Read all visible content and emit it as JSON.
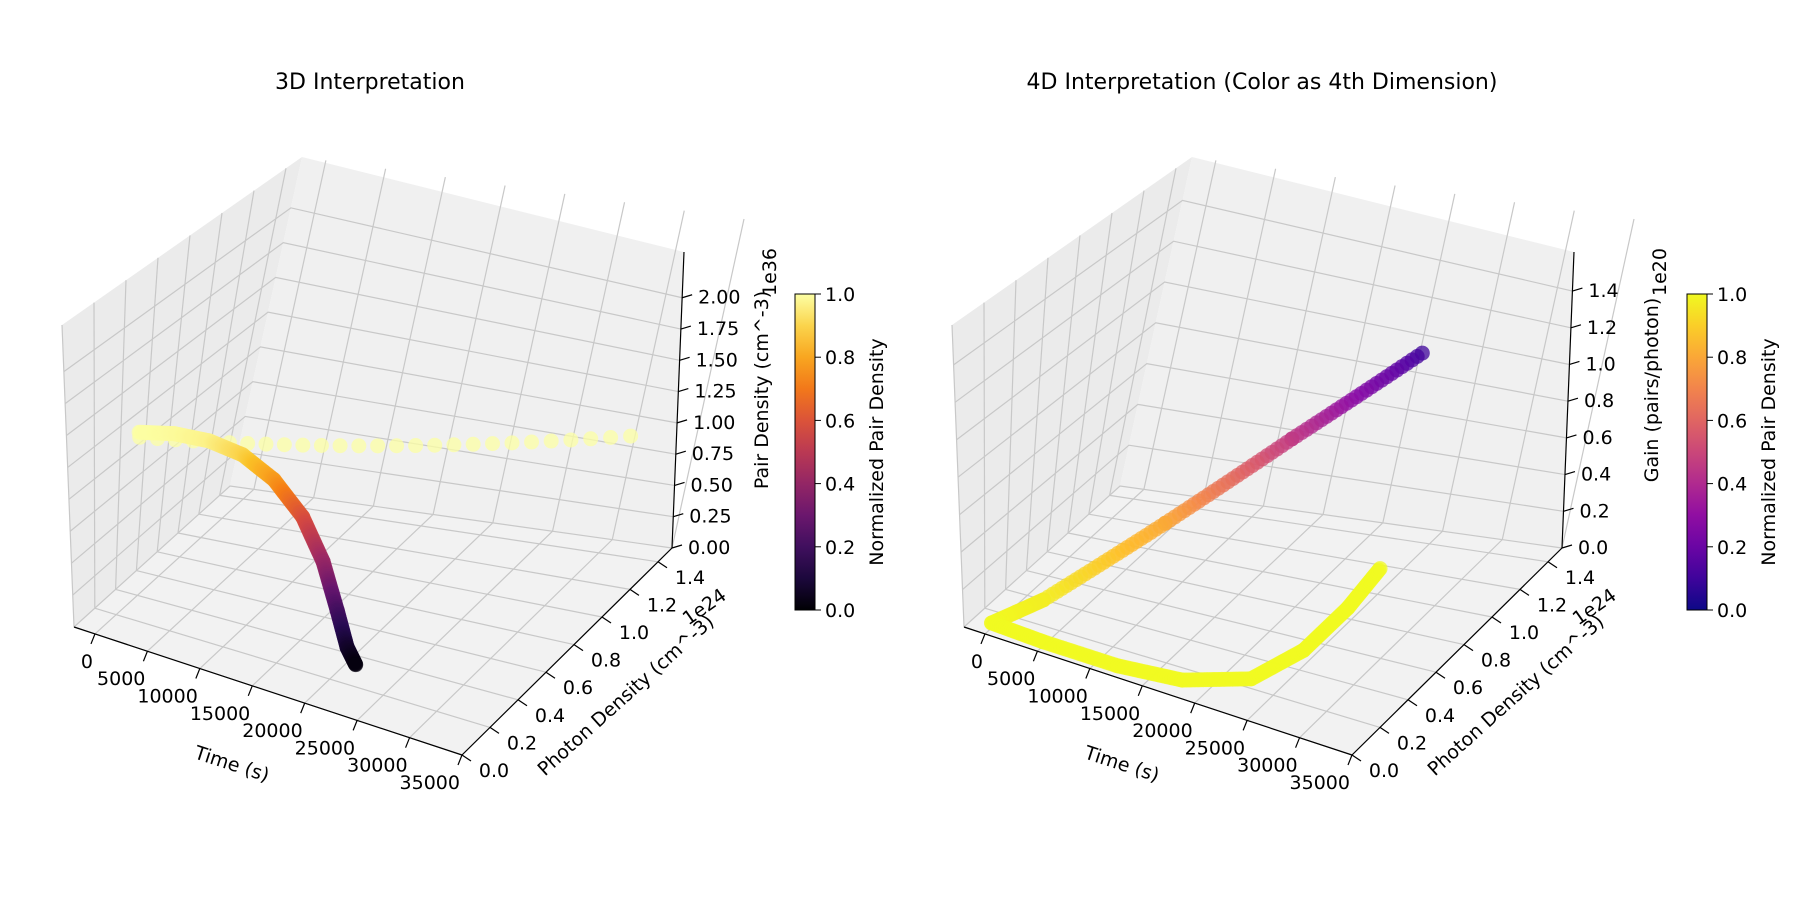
{
  "chart_data": [
    {
      "type": "scatter",
      "projection": "3d",
      "title": "3D Interpretation",
      "xlabel": "Time (s)",
      "ylabel": "Photon Density (cm^-3)",
      "zlabel": "Pair Density (cm^-3)",
      "xlim": [
        -2000,
        35000
      ],
      "ylim": [
        0,
        1.5e+24
      ],
      "zlim": [
        0,
        2.2e+36
      ],
      "xticks": [
        0,
        5000,
        10000,
        15000,
        20000,
        25000,
        30000,
        35000
      ],
      "xtick_labels": [
        "0",
        "5000",
        "10000",
        "15000",
        "20000",
        "25000",
        "30000",
        "35000"
      ],
      "yticks": [
        0,
        2e+23,
        4e+23,
        6e+23,
        8e+23,
        1e+24,
        1.2e+24,
        1.4e+24
      ],
      "ytick_labels": [
        "0.0",
        "0.2",
        "0.4",
        "0.6",
        "0.8",
        "1.0",
        "1.2",
        "1.4"
      ],
      "y_offset_label": "1e24",
      "zticks": [
        0,
        2.5e+35,
        5e+35,
        7.5e+35,
        1e+36,
        1.25e+36,
        1.5e+36,
        1.75e+36,
        2e+36
      ],
      "ztick_labels": [
        "0.00",
        "0.25",
        "0.50",
        "0.75",
        "1.00",
        "1.25",
        "1.50",
        "1.75",
        "2.00"
      ],
      "z_offset_label": "1e36",
      "colormap": "inferno",
      "colorbar": {
        "label": "Normalized Pair Density",
        "ticks": [
          0,
          0.2,
          0.4,
          0.6,
          0.8,
          1.0
        ],
        "tick_labels": [
          "0.0",
          "0.2",
          "0.4",
          "0.6",
          "0.8",
          "1.0"
        ]
      },
      "trajectory": [
        {
          "t": 0,
          "photon": 0.0,
          "pair": 1.45e+36,
          "c": 1.0
        },
        {
          "t": 3000,
          "photon": 2e+22,
          "pair": 1.5e+36,
          "c": 0.99
        },
        {
          "t": 6000,
          "photon": 5e+22,
          "pair": 1.5e+36,
          "c": 0.97
        },
        {
          "t": 9000,
          "photon": 8e+22,
          "pair": 1.45e+36,
          "c": 0.9
        },
        {
          "t": 12000,
          "photon": 1.1e+23,
          "pair": 1.32e+36,
          "c": 0.78
        },
        {
          "t": 15000,
          "photon": 1.4e+23,
          "pair": 1.1e+36,
          "c": 0.6
        },
        {
          "t": 17500,
          "photon": 1.6e+23,
          "pair": 8.2e+35,
          "c": 0.42
        },
        {
          "t": 19500,
          "photon": 1.8e+23,
          "pair": 5e+35,
          "c": 0.22
        },
        {
          "t": 21000,
          "photon": 1.9e+23,
          "pair": 2.6e+35,
          "c": 0.08
        },
        {
          "t": 22000,
          "photon": 2e+23,
          "pair": 1.5e+35,
          "c": 0.02
        }
      ],
      "trajectory_alt": [
        {
          "t": 0,
          "photon": 2e+22,
          "pair": 1.4e+36,
          "c": 1.0
        },
        {
          "t": 35000,
          "photon": 9e+23,
          "pair": 1.4e+36,
          "c": 1.0
        }
      ]
    },
    {
      "type": "scatter",
      "projection": "3d",
      "title": "4D Interpretation (Color as 4th Dimension)",
      "xlabel": "Time (s)",
      "ylabel": "Photon Density (cm^-3)",
      "zlabel": "Gain (pairs/photon)",
      "xlim": [
        -2000,
        35000
      ],
      "ylim": [
        0,
        1.5e+24
      ],
      "zlim": [
        0,
        1.5e+20
      ],
      "xticks": [
        0,
        5000,
        10000,
        15000,
        20000,
        25000,
        30000,
        35000
      ],
      "xtick_labels": [
        "0",
        "5000",
        "10000",
        "15000",
        "20000",
        "25000",
        "30000",
        "35000"
      ],
      "yticks": [
        0,
        2e+23,
        4e+23,
        6e+23,
        8e+23,
        1e+24,
        1.2e+24,
        1.4e+24
      ],
      "ytick_labels": [
        "0.0",
        "0.2",
        "0.4",
        "0.6",
        "0.8",
        "1.0",
        "1.2",
        "1.4"
      ],
      "y_offset_label": "1e24",
      "zticks": [
        0,
        2e+19,
        4e+19,
        6e+19,
        8e+19,
        1e+20,
        1.2e+20,
        1.4e+20
      ],
      "ztick_labels": [
        "0.0",
        "0.2",
        "0.4",
        "0.6",
        "0.8",
        "1.0",
        "1.2",
        "1.4"
      ],
      "z_offset_label": "1e20",
      "colormap": "plasma",
      "colorbar": {
        "label": "Normalized Pair Density",
        "ticks": [
          0,
          0.2,
          0.4,
          0.6,
          0.8,
          1.0
        ],
        "tick_labels": [
          "0.0",
          "0.2",
          "0.4",
          "0.6",
          "0.8",
          "1.0"
        ]
      },
      "trajectory": [
        {
          "t": 21000,
          "photon": 1.4e+24,
          "gain": 9e+19,
          "c": 0.1
        },
        {
          "t": 15000,
          "photon": 1e+24,
          "gain": 6.5e+19,
          "c": 0.45
        },
        {
          "t": 9000,
          "photon": 6e+23,
          "gain": 3.8e+19,
          "c": 0.8
        },
        {
          "t": 3000,
          "photon": 2e+23,
          "gain": 1.2e+19,
          "c": 0.97
        },
        {
          "t": 0,
          "photon": 5e+22,
          "gain": 3e+18,
          "c": 1.0
        },
        {
          "t": 5000,
          "photon": 5e+22,
          "gain": 2e+18,
          "c": 1.0
        },
        {
          "t": 12000,
          "photon": 5e+22,
          "gain": 2e+18,
          "c": 1.0
        },
        {
          "t": 18000,
          "photon": 5e+22,
          "gain": 5e+18,
          "c": 1.0
        },
        {
          "t": 24000,
          "photon": 6e+22,
          "gain": 1.5e+19,
          "c": 1.0
        },
        {
          "t": 28000,
          "photon": 7e+22,
          "gain": 3.5e+19,
          "c": 1.0
        },
        {
          "t": 31000,
          "photon": 8e+22,
          "gain": 6e+19,
          "c": 1.0
        },
        {
          "t": 33000,
          "photon": 9e+22,
          "gain": 8.2e+19,
          "c": 1.0
        }
      ]
    }
  ]
}
